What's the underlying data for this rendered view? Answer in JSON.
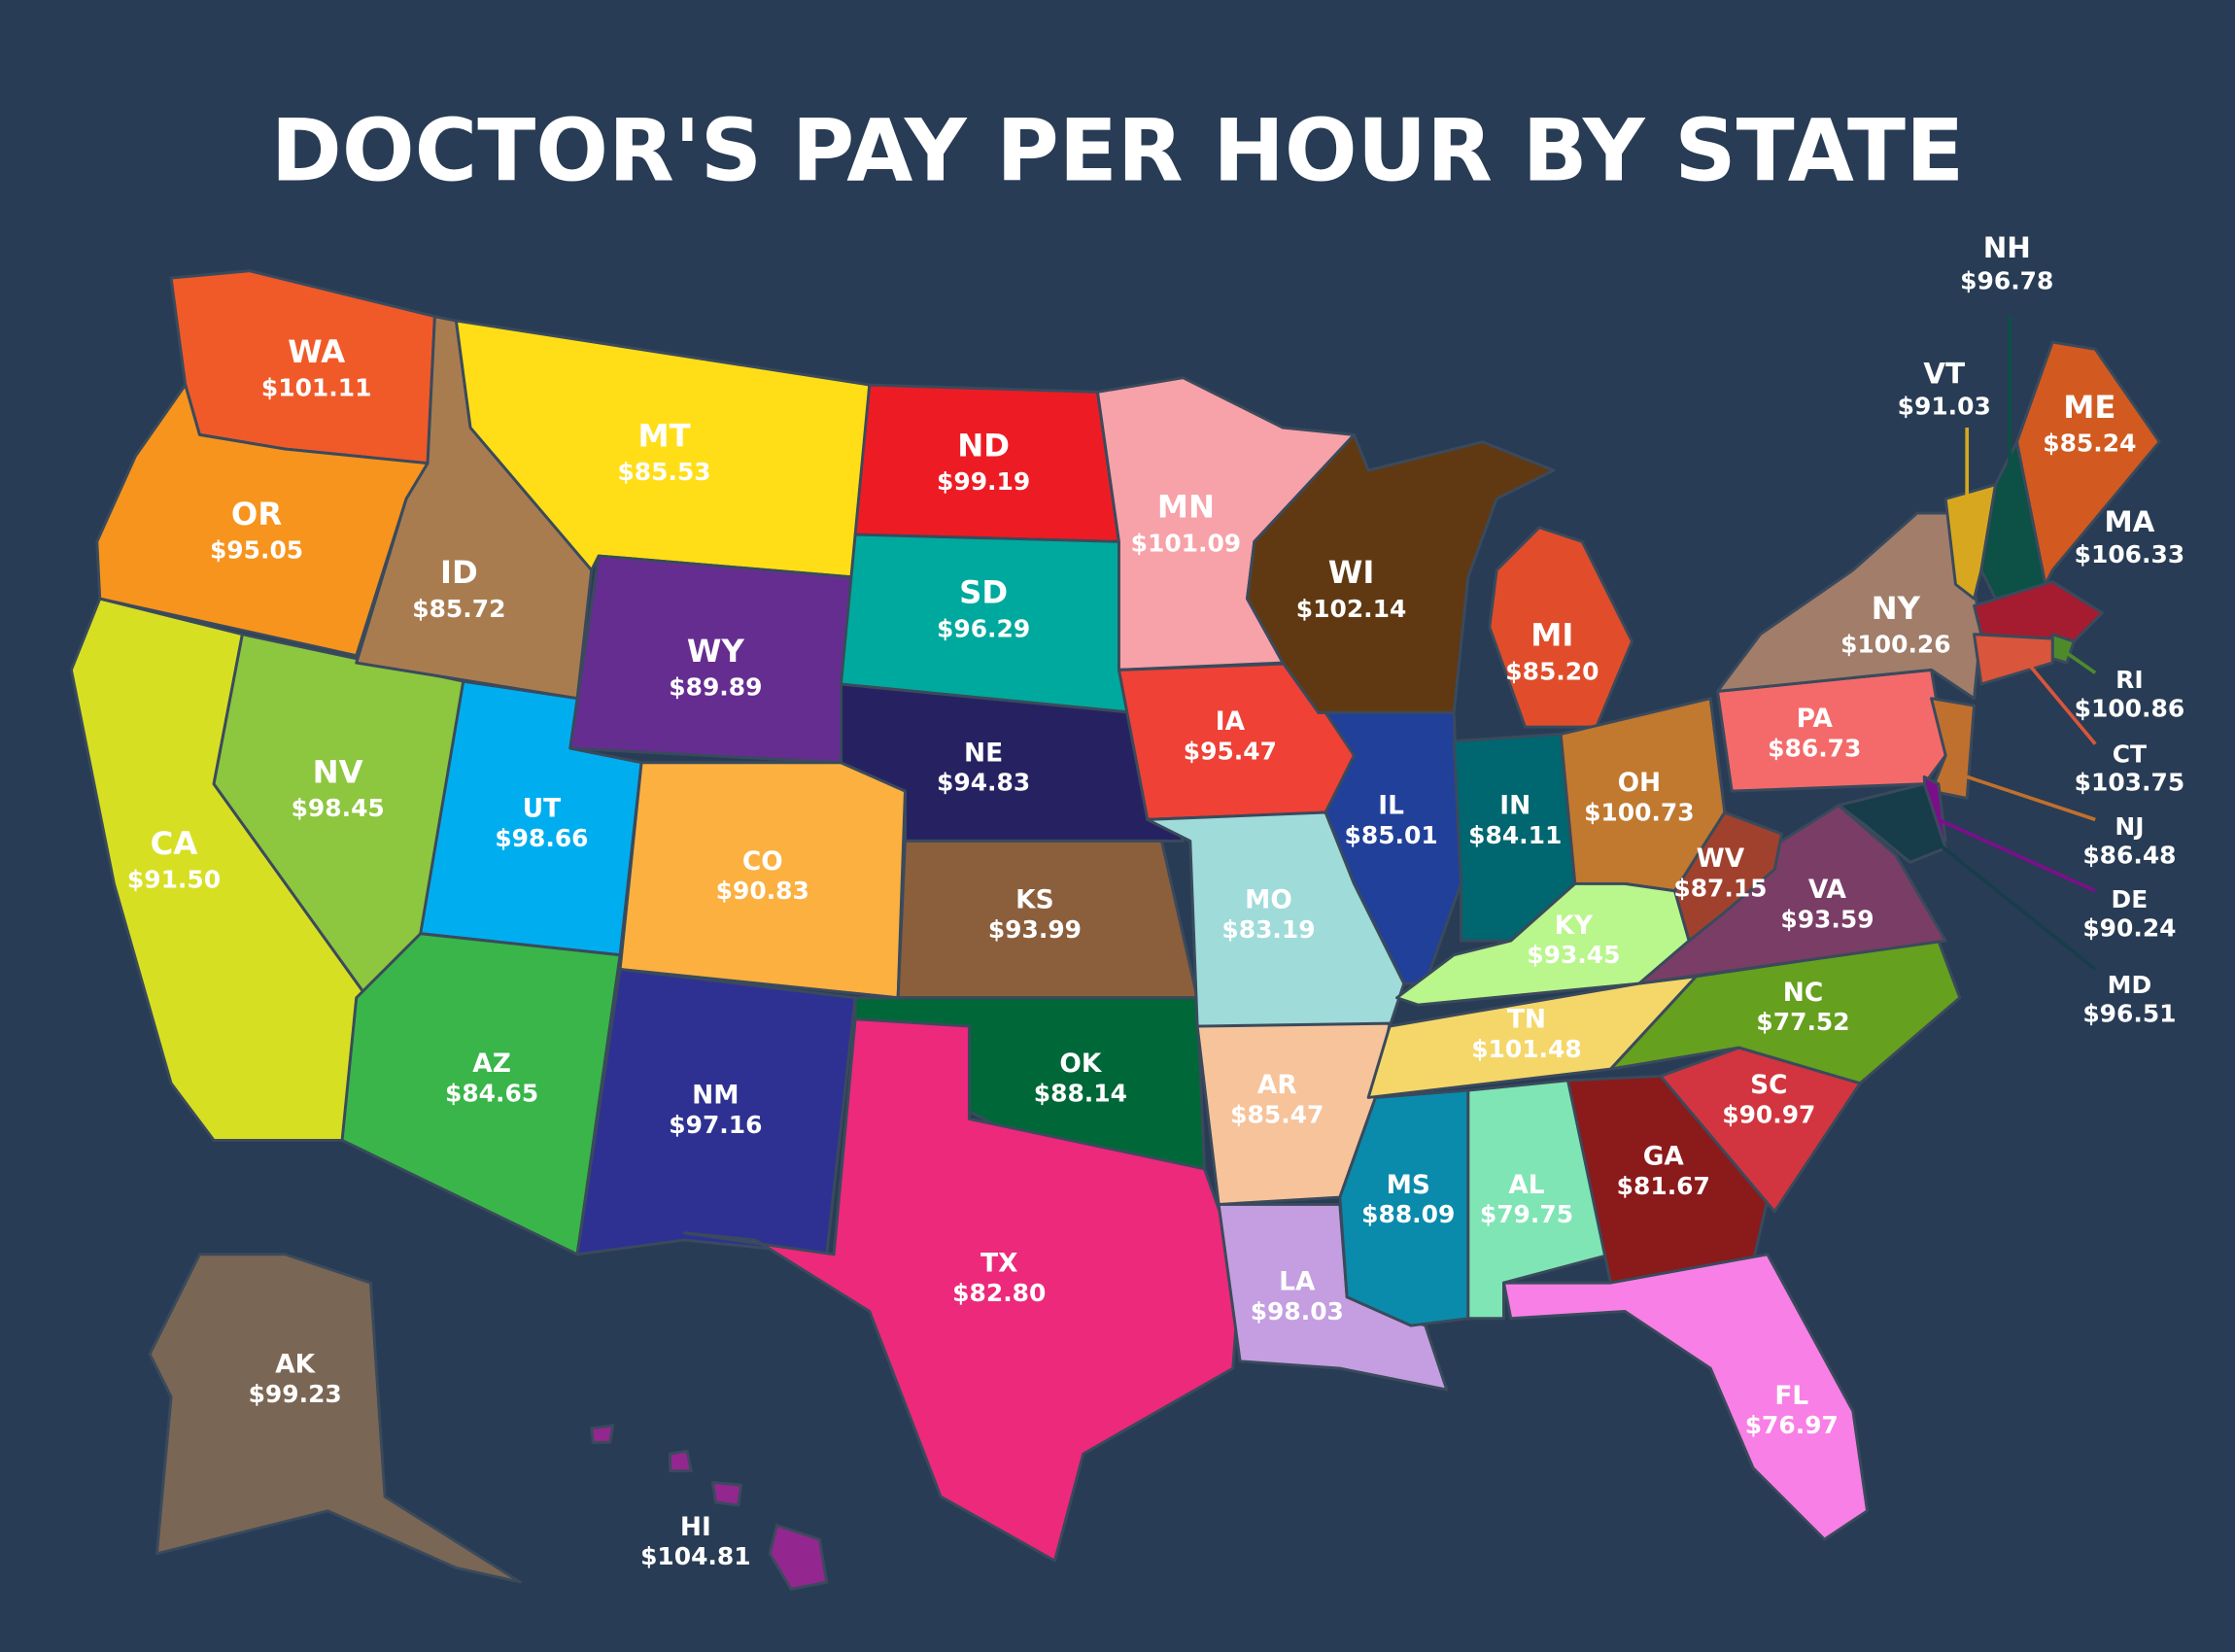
{
  "title": "DOCTOR'S PAY PER HOUR BY STATE",
  "states": [
    {
      "abbr": "WA",
      "pay": "$101.11",
      "color": "#f05a28"
    },
    {
      "abbr": "OR",
      "pay": "$95.05",
      "color": "#f7941d"
    },
    {
      "abbr": "CA",
      "pay": "$91.50",
      "color": "#d7df23"
    },
    {
      "abbr": "NV",
      "pay": "$98.45",
      "color": "#8dc63f"
    },
    {
      "abbr": "ID",
      "pay": "$85.72",
      "color": "#a97c50"
    },
    {
      "abbr": "MT",
      "pay": "$85.53",
      "color": "#ffde17"
    },
    {
      "abbr": "WY",
      "pay": "$89.89",
      "color": "#662d91"
    },
    {
      "abbr": "UT",
      "pay": "$98.66",
      "color": "#00aeef"
    },
    {
      "abbr": "CO",
      "pay": "$90.83",
      "color": "#fbb040"
    },
    {
      "abbr": "AZ",
      "pay": "$84.65",
      "color": "#39b54a"
    },
    {
      "abbr": "NM",
      "pay": "$97.16",
      "color": "#2e3192"
    },
    {
      "abbr": "ND",
      "pay": "$99.19",
      "color": "#ed1c24"
    },
    {
      "abbr": "SD",
      "pay": "$96.29",
      "color": "#00a99d"
    },
    {
      "abbr": "NE",
      "pay": "$94.83",
      "color": "#262262"
    },
    {
      "abbr": "KS",
      "pay": "$93.99",
      "color": "#8b5e3c"
    },
    {
      "abbr": "OK",
      "pay": "$88.14",
      "color": "#006838"
    },
    {
      "abbr": "TX",
      "pay": "$82.80",
      "color": "#ec297b"
    },
    {
      "abbr": "MN",
      "pay": "$101.09",
      "color": "#f7a1a8"
    },
    {
      "abbr": "IA",
      "pay": "$95.47",
      "color": "#ef4136"
    },
    {
      "abbr": "MO",
      "pay": "$83.19",
      "color": "#9fdbd9"
    },
    {
      "abbr": "AR",
      "pay": "$85.47",
      "color": "#f6c39b"
    },
    {
      "abbr": "LA",
      "pay": "$98.03",
      "color": "#c49ee0"
    },
    {
      "abbr": "WI",
      "pay": "$102.14",
      "color": "#603913"
    },
    {
      "abbr": "IL",
      "pay": "$85.01",
      "color": "#21409a"
    },
    {
      "abbr": "MI",
      "pay": "$85.20",
      "color": "#e14d2a"
    },
    {
      "abbr": "IN",
      "pay": "$84.11",
      "color": "#00666f"
    },
    {
      "abbr": "OH",
      "pay": "$100.73",
      "color": "#c1782f"
    },
    {
      "abbr": "KY",
      "pay": "$93.45",
      "color": "#b9f68b"
    },
    {
      "abbr": "TN",
      "pay": "$101.48",
      "color": "#f5d769"
    },
    {
      "abbr": "MS",
      "pay": "$88.09",
      "color": "#0a8bab"
    },
    {
      "abbr": "AL",
      "pay": "$79.75",
      "color": "#7fe5b4"
    },
    {
      "abbr": "GA",
      "pay": "$81.67",
      "color": "#8b1a1a"
    },
    {
      "abbr": "FL",
      "pay": "$76.97",
      "color": "#f87fe5"
    },
    {
      "abbr": "SC",
      "pay": "$90.97",
      "color": "#d2353f"
    },
    {
      "abbr": "NC",
      "pay": "$77.52",
      "color": "#65a01f"
    },
    {
      "abbr": "VA",
      "pay": "$93.59",
      "color": "#7a3d66"
    },
    {
      "abbr": "WV",
      "pay": "$87.15",
      "color": "#a0412e"
    },
    {
      "abbr": "PA",
      "pay": "$86.73",
      "color": "#f46a6a"
    },
    {
      "abbr": "NY",
      "pay": "$100.26",
      "color": "#a17d6a"
    },
    {
      "abbr": "VT",
      "pay": "$91.03",
      "color": "#d7a81f"
    },
    {
      "abbr": "NH",
      "pay": "$96.78",
      "color": "#0d5045"
    },
    {
      "abbr": "ME",
      "pay": "$85.24",
      "color": "#d25a20"
    },
    {
      "abbr": "MA",
      "pay": "$106.33",
      "color": "#a51c30"
    },
    {
      "abbr": "RI",
      "pay": "$100.86",
      "color": "#4e8a2c"
    },
    {
      "abbr": "CT",
      "pay": "$103.75",
      "color": "#d9553b"
    },
    {
      "abbr": "NJ",
      "pay": "$86.48",
      "color": "#c0702e"
    },
    {
      "abbr": "DE",
      "pay": "$90.24",
      "color": "#7b0f8a"
    },
    {
      "abbr": "MD",
      "pay": "$96.51",
      "color": "#173d4a"
    },
    {
      "abbr": "AK",
      "pay": "$99.23",
      "color": "#7a6654"
    },
    {
      "abbr": "HI",
      "pay": "$104.81",
      "color": "#93278f"
    }
  ]
}
